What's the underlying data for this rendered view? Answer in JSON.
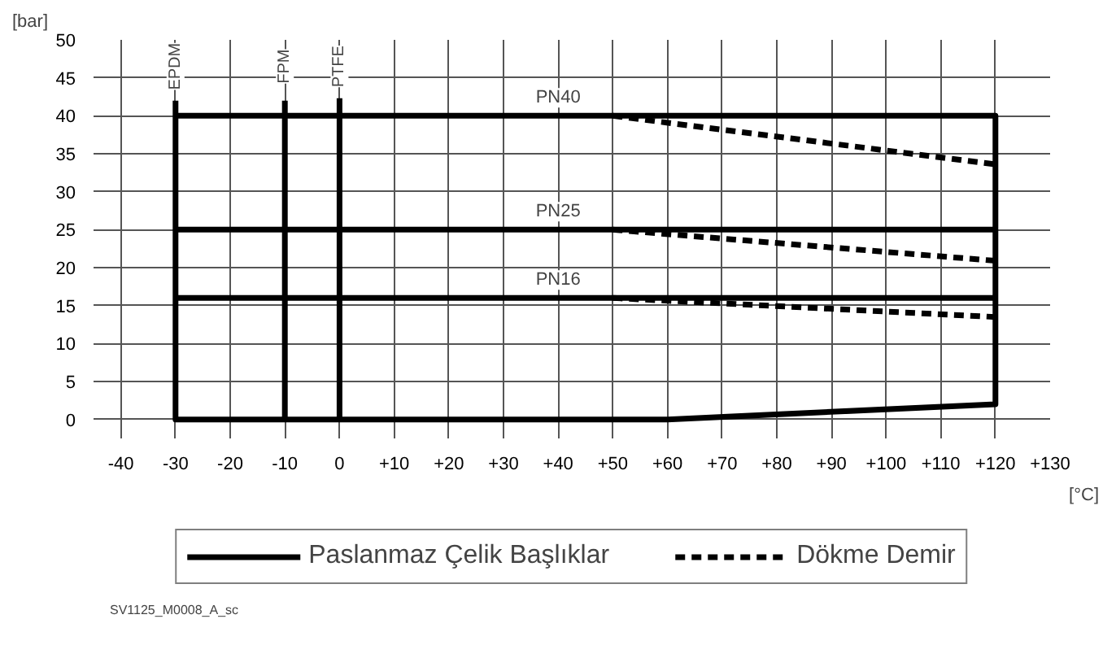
{
  "chart_data": {
    "type": "line",
    "xlabel": "[°C]",
    "ylabel": "[bar]",
    "xlim": [
      -45,
      130
    ],
    "ylim": [
      -2.5,
      50
    ],
    "xticks": [
      -40,
      -30,
      -20,
      -10,
      0,
      {
        "value": 10,
        "label": "+10"
      },
      {
        "value": 20,
        "label": "+20"
      },
      {
        "value": 30,
        "label": "+30"
      },
      {
        "value": 40,
        "label": "+40"
      },
      {
        "value": 50,
        "label": "+50"
      },
      {
        "value": 60,
        "label": "+60"
      },
      {
        "value": 70,
        "label": "+70"
      },
      {
        "value": 80,
        "label": "+80"
      },
      {
        "value": 90,
        "label": "+90"
      },
      {
        "value": 100,
        "label": "+100"
      },
      {
        "value": 110,
        "label": "+110"
      },
      {
        "value": 120,
        "label": "+120"
      },
      {
        "value": 130,
        "label": "+130"
      }
    ],
    "yticks": [
      0,
      5,
      10,
      15,
      20,
      25,
      30,
      35,
      40,
      45,
      50
    ],
    "grid": true,
    "legend": "bottom",
    "marker": "none",
    "series": [
      {
        "name": "Paslanmaz Çelik Başlıklar",
        "color": "#000000",
        "line_style": "solid",
        "x": [
          -30,
          -30,
          60,
          120,
          120,
          -30
        ],
        "values": [
          42,
          0,
          0,
          2,
          40,
          40
        ]
      },
      {
        "color": "#000000",
        "line_style": "solid",
        "x": [
          -30,
          120
        ],
        "values": [
          25,
          25
        ]
      },
      {
        "color": "#000000",
        "line_style": "solid",
        "x": [
          -30,
          120
        ],
        "values": [
          16,
          16
        ]
      },
      {
        "color": "#000000",
        "line_style": "solid",
        "x": [
          -10,
          -10
        ],
        "values": [
          42,
          0
        ]
      },
      {
        "color": "#000000",
        "line_style": "solid",
        "x": [
          0,
          0
        ],
        "values": [
          42.3,
          0
        ]
      },
      {
        "name": "Dökme Demir",
        "color": "#000000",
        "line_style": "dashed",
        "x": [
          50,
          120
        ],
        "values": [
          40,
          33.6
        ]
      },
      {
        "color": "#000000",
        "line_style": "dashed",
        "x": [
          50,
          120
        ],
        "values": [
          25,
          20.9
        ]
      },
      {
        "color": "#000000",
        "line_style": "dashed",
        "x": [
          50,
          120
        ],
        "values": [
          16,
          13.5
        ]
      }
    ],
    "annotations": [
      {
        "text": "EPDM",
        "x": -30,
        "y": 46.5
      },
      {
        "text": "FPM",
        "x": -10,
        "y": 46.5
      },
      {
        "text": "PTFE",
        "x": 0,
        "y": 46.5
      },
      {
        "text": "PN40",
        "x": 40,
        "y": 40
      },
      {
        "text": "PN25",
        "x": 40,
        "y": 25
      },
      {
        "text": "PN16",
        "x": 40,
        "y": 16
      },
      "SV1125_M0008_A_sc"
    ]
  }
}
